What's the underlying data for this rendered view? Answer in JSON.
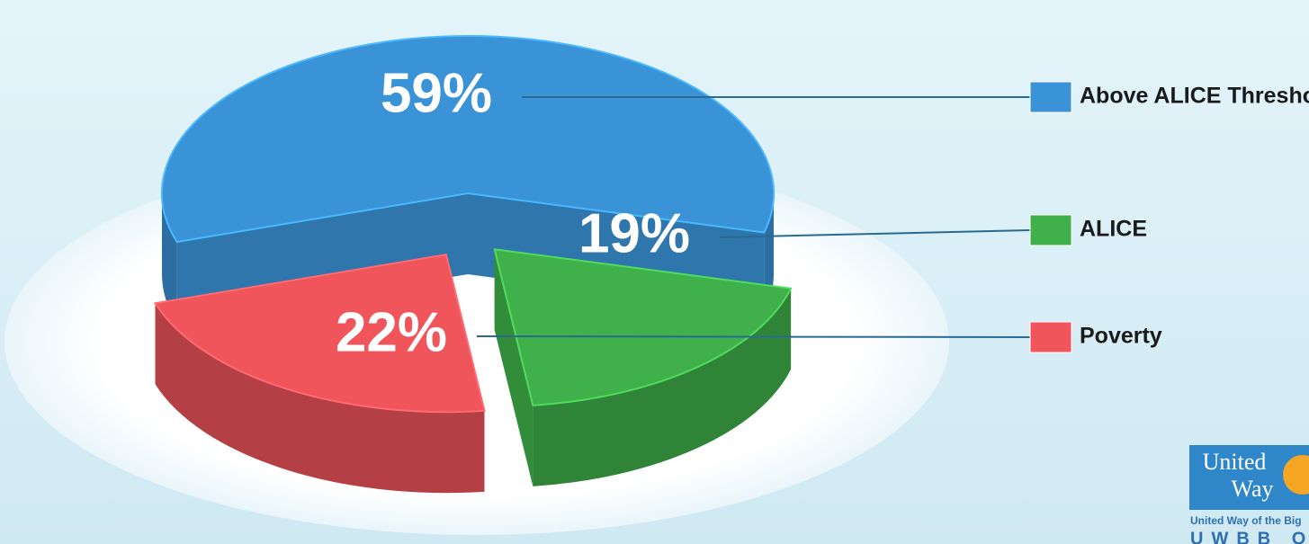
{
  "chart_data": {
    "type": "pie",
    "categories": [
      "Above ALICE Threshold",
      "ALICE",
      "Poverty"
    ],
    "values": [
      59,
      19,
      22
    ],
    "value_labels": [
      "59%",
      "19%",
      "22%"
    ],
    "colors": [
      "#3a93d6",
      "#3fb04a",
      "#f0555c"
    ],
    "legend": "right"
  },
  "logo": {
    "lines": [
      "United",
      "Way"
    ],
    "caption": "United Way of the Big",
    "code": "UWBB O"
  }
}
